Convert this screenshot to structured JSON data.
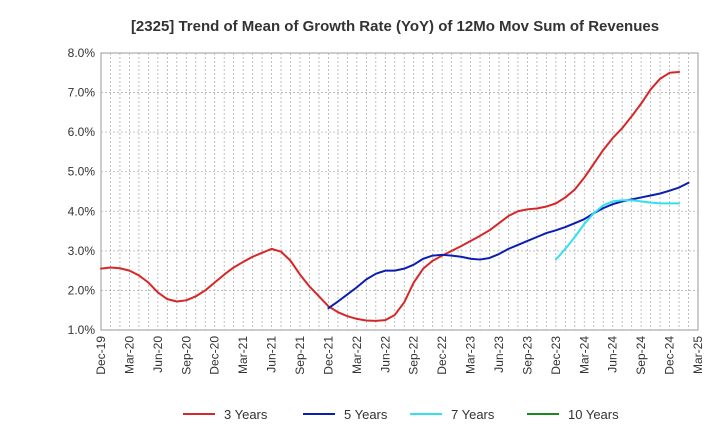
{
  "chart_data": {
    "type": "line",
    "title": "[2325]  Trend of Mean of Growth Rate (YoY) of 12Mo Mov Sum of Revenues",
    "xlabel": "",
    "ylabel": "",
    "ylim": [
      1.0,
      8.0
    ],
    "yticks": [
      "1.0%",
      "2.0%",
      "3.0%",
      "4.0%",
      "5.0%",
      "6.0%",
      "7.0%",
      "8.0%"
    ],
    "xticks": [
      "Dec-19",
      "Mar-20",
      "Jun-20",
      "Sep-20",
      "Dec-20",
      "Mar-21",
      "Jun-21",
      "Sep-21",
      "Dec-21",
      "Mar-22",
      "Jun-22",
      "Sep-22",
      "Dec-22",
      "Mar-23",
      "Jun-23",
      "Sep-23",
      "Dec-23",
      "Mar-24",
      "Jun-24",
      "Sep-24",
      "Dec-24",
      "Mar-25"
    ],
    "grid": true,
    "legend_position": "bottom",
    "series": [
      {
        "name": "3 Years",
        "color": "#d62728",
        "start_month": 0,
        "values": [
          2.55,
          2.58,
          2.56,
          2.5,
          2.38,
          2.2,
          1.95,
          1.78,
          1.72,
          1.75,
          1.85,
          2.0,
          2.2,
          2.4,
          2.58,
          2.72,
          2.85,
          2.95,
          3.05,
          2.98,
          2.75,
          2.4,
          2.1,
          1.85,
          1.6,
          1.45,
          1.35,
          1.28,
          1.24,
          1.23,
          1.25,
          1.38,
          1.7,
          2.2,
          2.55,
          2.75,
          2.88,
          3.0,
          3.12,
          3.25,
          3.38,
          3.52,
          3.7,
          3.88,
          4.0,
          4.05,
          4.07,
          4.12,
          4.2,
          4.35,
          4.55,
          4.85,
          5.2,
          5.55,
          5.85,
          6.1,
          6.4,
          6.72,
          7.08,
          7.35,
          7.5,
          7.52
        ]
      },
      {
        "name": "5 Years",
        "color": "#0a1eb4",
        "start_month": 24,
        "values": [
          1.55,
          1.72,
          1.9,
          2.08,
          2.28,
          2.42,
          2.5,
          2.5,
          2.55,
          2.65,
          2.8,
          2.88,
          2.9,
          2.88,
          2.85,
          2.8,
          2.78,
          2.82,
          2.92,
          3.05,
          3.15,
          3.25,
          3.35,
          3.45,
          3.52,
          3.6,
          3.7,
          3.8,
          3.95,
          4.08,
          4.18,
          4.25,
          4.3,
          4.35,
          4.4,
          4.45,
          4.52,
          4.6,
          4.72
        ]
      },
      {
        "name": "7 Years",
        "color": "#33e0ef",
        "start_month": 48,
        "values": [
          2.78,
          3.05,
          3.35,
          3.68,
          3.95,
          4.15,
          4.25,
          4.28,
          4.28,
          4.25,
          4.22,
          4.2,
          4.2,
          4.2
        ]
      },
      {
        "name": "10 Years",
        "color": "#1a8a1a",
        "start_month": 0,
        "values": []
      }
    ]
  }
}
